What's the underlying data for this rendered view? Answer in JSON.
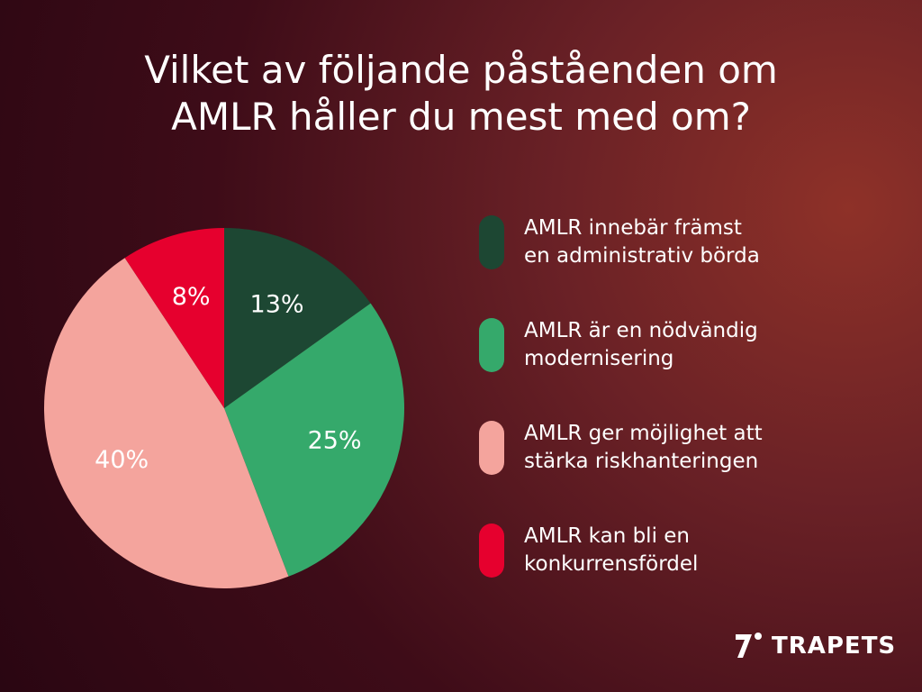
{
  "chart_data": {
    "type": "pie",
    "title": "Vilket av följande påståenden om\nAMLR håller du mest med om?",
    "categories": [
      "AMLR innebär främst\nen administrativ börda",
      "AMLR är en nödvändig\nmodernisering",
      "AMLR ger möjlighet att\nstärka riskhanteringen",
      "AMLR kan bli en\nkonkurrensfördel"
    ],
    "values": [
      13,
      25,
      40,
      8
    ],
    "value_labels": [
      "13%",
      "25%",
      "40%",
      "8%"
    ],
    "colors": [
      "#1d4733",
      "#35a96b",
      "#f4a49d",
      "#e6002e"
    ],
    "label_colors": [
      "#ffffff",
      "#ffffff",
      "#ffffff",
      "#ffffff"
    ]
  },
  "brand": "TRAPETS"
}
